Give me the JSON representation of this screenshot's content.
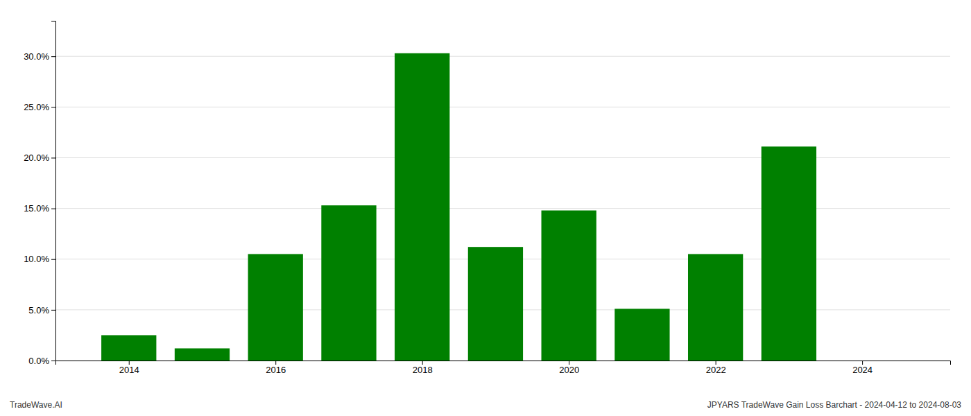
{
  "chart_data": {
    "type": "bar",
    "x": [
      2014,
      2015,
      2016,
      2017,
      2018,
      2019,
      2020,
      2021,
      2022,
      2023,
      2024
    ],
    "values": [
      0.025,
      0.012,
      0.105,
      0.153,
      0.303,
      0.112,
      0.148,
      0.051,
      0.105,
      0.211,
      null
    ],
    "color": "#008000",
    "xlim": [
      2013.0,
      2025.2
    ],
    "xticks": [
      2014,
      2016,
      2018,
      2020,
      2022,
      2024
    ],
    "ylim": [
      0.0,
      0.335
    ],
    "yticks": [
      {
        "value": 0.0,
        "label": "0.0%"
      },
      {
        "value": 0.05,
        "label": "5.0%"
      },
      {
        "value": 0.1,
        "label": "10.0%"
      },
      {
        "value": 0.15,
        "label": "15.0%"
      },
      {
        "value": 0.2,
        "label": "20.0%"
      },
      {
        "value": 0.25,
        "label": "25.0%"
      },
      {
        "value": 0.3,
        "label": "30.0%"
      }
    ],
    "grid": true,
    "annotations": [
      "TradeWave.AI",
      "JPYARS TradeWave Gain Loss Barchart - 2024-04-12 to 2024-08-03"
    ]
  }
}
